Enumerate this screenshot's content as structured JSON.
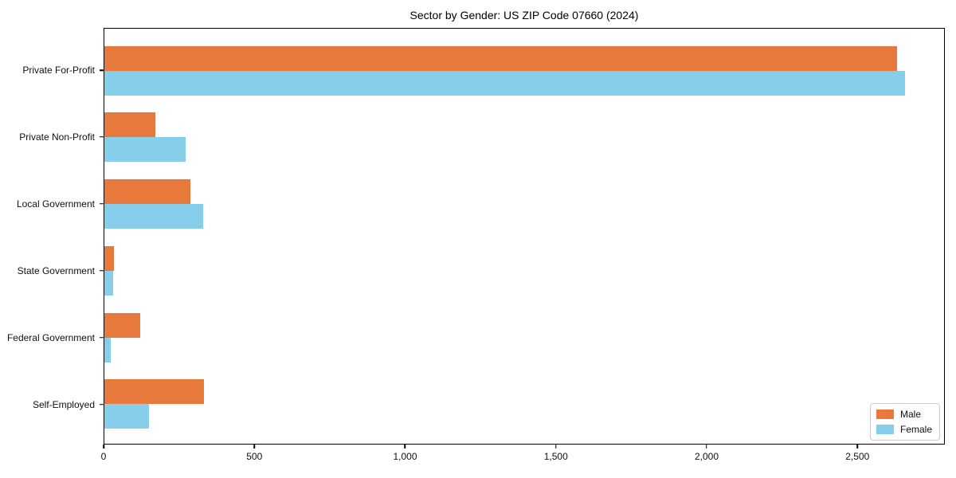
{
  "chart_data": {
    "type": "bar",
    "orientation": "horizontal",
    "title": "Sector by Gender: US ZIP Code 07660 (2024)",
    "categories": [
      "Private For-Profit",
      "Private Non-Profit",
      "Local Government",
      "State Government",
      "Federal Government",
      "Self-Employed"
    ],
    "series": [
      {
        "name": "Male",
        "color": "#E8793C",
        "values": [
          2635,
          170,
          285,
          31,
          120,
          330
        ]
      },
      {
        "name": "Female",
        "color": "#87CEEB",
        "values": [
          2660,
          270,
          327,
          29,
          22,
          148
        ]
      }
    ],
    "xlabel": "",
    "ylabel": "",
    "xlim": [
      0,
      2790
    ],
    "xticks": {
      "values": [
        0,
        500,
        1000,
        1500,
        2000,
        2500
      ],
      "labels": [
        "0",
        "500",
        "1,000",
        "1,500",
        "2,000",
        "2,500"
      ]
    },
    "grid": false,
    "background": "#ffffff",
    "spine_color": "#000000",
    "legend": {
      "position": "lower right",
      "entries": [
        "Male",
        "Female"
      ]
    }
  }
}
